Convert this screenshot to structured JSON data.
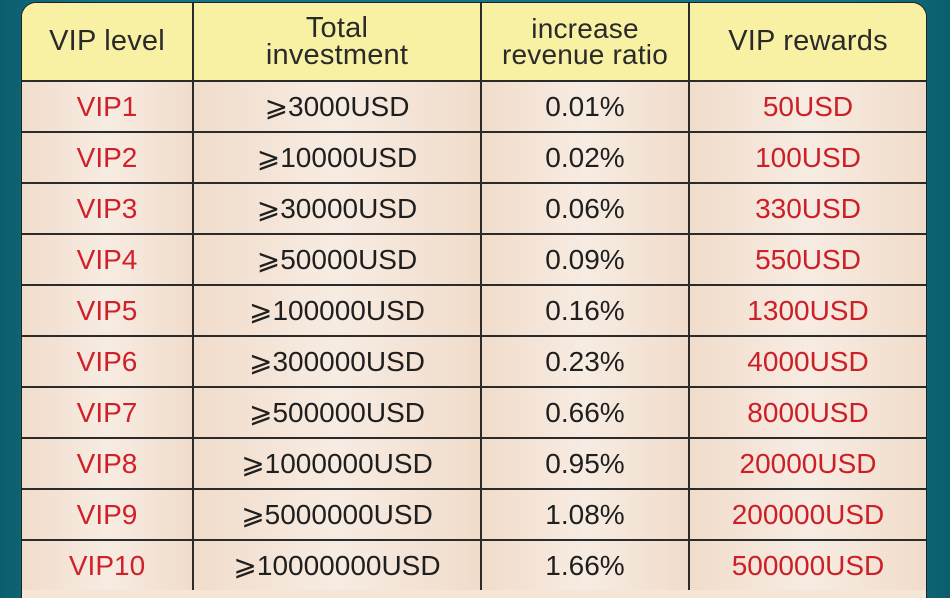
{
  "table": {
    "headers": {
      "level": "VIP level",
      "investment_line1": "Total",
      "investment_line2": "investment",
      "ratio_line1": "increase",
      "ratio_line2": "revenue ratio",
      "rewards": "VIP rewards"
    },
    "rows": [
      {
        "level": "VIP1",
        "investment": "⩾3000USD",
        "ratio": "0.01%",
        "reward": "50USD"
      },
      {
        "level": "VIP2",
        "investment": "⩾10000USD",
        "ratio": "0.02%",
        "reward": "100USD"
      },
      {
        "level": "VIP3",
        "investment": "⩾30000USD",
        "ratio": "0.06%",
        "reward": "330USD"
      },
      {
        "level": "VIP4",
        "investment": "⩾50000USD",
        "ratio": "0.09%",
        "reward": "550USD"
      },
      {
        "level": "VIP5",
        "investment": "⩾100000USD",
        "ratio": "0.16%",
        "reward": "1300USD"
      },
      {
        "level": "VIP6",
        "investment": "⩾300000USD",
        "ratio": "0.23%",
        "reward": "4000USD"
      },
      {
        "level": "VIP7",
        "investment": "⩾500000USD",
        "ratio": "0.66%",
        "reward": "8000USD"
      },
      {
        "level": "VIP8",
        "investment": "⩾1000000USD",
        "ratio": "0.95%",
        "reward": "20000USD"
      },
      {
        "level": "VIP9",
        "investment": "⩾5000000USD",
        "ratio": "1.08%",
        "reward": "200000USD"
      },
      {
        "level": "VIP10",
        "investment": "⩾10000000USD",
        "ratio": "1.66%",
        "reward": "500000USD"
      }
    ]
  }
}
